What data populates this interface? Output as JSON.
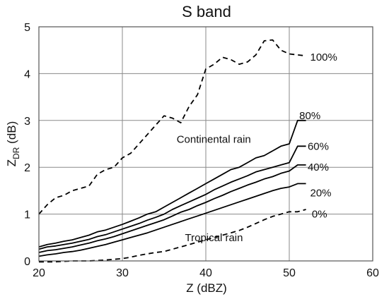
{
  "chart_data": {
    "type": "line",
    "title": "S band",
    "xlabel": "Z (dBZ)",
    "ylabel": {
      "main": "Z",
      "sub": "DR",
      "unit": " (dB)"
    },
    "xlim": [
      20,
      60
    ],
    "ylim": [
      0,
      5
    ],
    "xticks": [
      20,
      30,
      40,
      50,
      60
    ],
    "yticks": [
      0,
      1,
      2,
      3,
      4,
      5
    ],
    "grid": true,
    "annotations": [
      {
        "text": "Continental rain",
        "x": 36.5,
        "y": 2.6
      },
      {
        "text": "Tropical rain",
        "x": 37.5,
        "y": 0.5
      }
    ],
    "series": [
      {
        "name": "100%",
        "style": "dashed",
        "label_pos": [
          52.5,
          4.35
        ],
        "points": [
          [
            20,
            1.0
          ],
          [
            21,
            1.2
          ],
          [
            22,
            1.35
          ],
          [
            23,
            1.4
          ],
          [
            24,
            1.5
          ],
          [
            25,
            1.55
          ],
          [
            26,
            1.6
          ],
          [
            27,
            1.85
          ],
          [
            28,
            1.95
          ],
          [
            29,
            2.0
          ],
          [
            30,
            2.2
          ],
          [
            31,
            2.3
          ],
          [
            32,
            2.5
          ],
          [
            33,
            2.7
          ],
          [
            34,
            2.9
          ],
          [
            35,
            3.1
          ],
          [
            36,
            3.05
          ],
          [
            37,
            2.95
          ],
          [
            38,
            3.3
          ],
          [
            39,
            3.55
          ],
          [
            40,
            4.1
          ],
          [
            41,
            4.2
          ],
          [
            42,
            4.35
          ],
          [
            43,
            4.3
          ],
          [
            44,
            4.2
          ],
          [
            45,
            4.25
          ],
          [
            46,
            4.4
          ],
          [
            47,
            4.7
          ],
          [
            48,
            4.72
          ],
          [
            49,
            4.5
          ],
          [
            50,
            4.42
          ],
          [
            51,
            4.4
          ],
          [
            52,
            4.38
          ]
        ]
      },
      {
        "name": "80%",
        "style": "solid",
        "label_pos": [
          51.2,
          3.1
        ],
        "points": [
          [
            20,
            0.3
          ],
          [
            21,
            0.35
          ],
          [
            22,
            0.38
          ],
          [
            23,
            0.42
          ],
          [
            24,
            0.45
          ],
          [
            25,
            0.5
          ],
          [
            26,
            0.55
          ],
          [
            27,
            0.62
          ],
          [
            28,
            0.66
          ],
          [
            29,
            0.72
          ],
          [
            30,
            0.78
          ],
          [
            31,
            0.85
          ],
          [
            32,
            0.92
          ],
          [
            33,
            1.0
          ],
          [
            34,
            1.05
          ],
          [
            35,
            1.15
          ],
          [
            36,
            1.25
          ],
          [
            37,
            1.35
          ],
          [
            38,
            1.45
          ],
          [
            39,
            1.55
          ],
          [
            40,
            1.65
          ],
          [
            41,
            1.75
          ],
          [
            42,
            1.85
          ],
          [
            43,
            1.95
          ],
          [
            44,
            2.0
          ],
          [
            45,
            2.1
          ],
          [
            46,
            2.2
          ],
          [
            47,
            2.25
          ],
          [
            48,
            2.35
          ],
          [
            49,
            2.45
          ],
          [
            50,
            2.5
          ],
          [
            51,
            3.0
          ],
          [
            52,
            3.0
          ]
        ]
      },
      {
        "name": "60%",
        "style": "solid",
        "label_pos": [
          52.2,
          2.45
        ],
        "points": [
          [
            20,
            0.25
          ],
          [
            21,
            0.3
          ],
          [
            22,
            0.32
          ],
          [
            23,
            0.35
          ],
          [
            24,
            0.38
          ],
          [
            25,
            0.42
          ],
          [
            26,
            0.46
          ],
          [
            27,
            0.52
          ],
          [
            28,
            0.56
          ],
          [
            29,
            0.62
          ],
          [
            30,
            0.68
          ],
          [
            31,
            0.74
          ],
          [
            32,
            0.8
          ],
          [
            33,
            0.87
          ],
          [
            34,
            0.93
          ],
          [
            35,
            1.0
          ],
          [
            36,
            1.1
          ],
          [
            37,
            1.18
          ],
          [
            38,
            1.26
          ],
          [
            39,
            1.34
          ],
          [
            40,
            1.42
          ],
          [
            41,
            1.52
          ],
          [
            42,
            1.6
          ],
          [
            43,
            1.68
          ],
          [
            44,
            1.75
          ],
          [
            45,
            1.82
          ],
          [
            46,
            1.9
          ],
          [
            47,
            1.95
          ],
          [
            48,
            2.0
          ],
          [
            49,
            2.05
          ],
          [
            50,
            2.1
          ],
          [
            51,
            2.45
          ],
          [
            52,
            2.45
          ]
        ]
      },
      {
        "name": "40%",
        "style": "solid",
        "label_pos": [
          52.2,
          2.0
        ],
        "points": [
          [
            20,
            0.18
          ],
          [
            21,
            0.22
          ],
          [
            22,
            0.24
          ],
          [
            23,
            0.27
          ],
          [
            24,
            0.3
          ],
          [
            25,
            0.34
          ],
          [
            26,
            0.38
          ],
          [
            27,
            0.43
          ],
          [
            28,
            0.47
          ],
          [
            29,
            0.52
          ],
          [
            30,
            0.58
          ],
          [
            31,
            0.64
          ],
          [
            32,
            0.7
          ],
          [
            33,
            0.76
          ],
          [
            34,
            0.82
          ],
          [
            35,
            0.88
          ],
          [
            36,
            0.96
          ],
          [
            37,
            1.04
          ],
          [
            38,
            1.1
          ],
          [
            39,
            1.18
          ],
          [
            40,
            1.25
          ],
          [
            41,
            1.33
          ],
          [
            42,
            1.4
          ],
          [
            43,
            1.48
          ],
          [
            44,
            1.55
          ],
          [
            45,
            1.62
          ],
          [
            46,
            1.68
          ],
          [
            47,
            1.75
          ],
          [
            48,
            1.8
          ],
          [
            49,
            1.87
          ],
          [
            50,
            1.92
          ],
          [
            51,
            2.05
          ],
          [
            52,
            2.05
          ]
        ]
      },
      {
        "name": "20%",
        "style": "solid",
        "label_pos": [
          52.5,
          1.45
        ],
        "points": [
          [
            20,
            0.1
          ],
          [
            21,
            0.13
          ],
          [
            22,
            0.15
          ],
          [
            23,
            0.18
          ],
          [
            24,
            0.2
          ],
          [
            25,
            0.23
          ],
          [
            26,
            0.27
          ],
          [
            27,
            0.31
          ],
          [
            28,
            0.35
          ],
          [
            29,
            0.4
          ],
          [
            30,
            0.45
          ],
          [
            31,
            0.5
          ],
          [
            32,
            0.55
          ],
          [
            33,
            0.6
          ],
          [
            34,
            0.66
          ],
          [
            35,
            0.72
          ],
          [
            36,
            0.78
          ],
          [
            37,
            0.84
          ],
          [
            38,
            0.9
          ],
          [
            39,
            0.96
          ],
          [
            40,
            1.02
          ],
          [
            41,
            1.08
          ],
          [
            42,
            1.14
          ],
          [
            43,
            1.2
          ],
          [
            44,
            1.26
          ],
          [
            45,
            1.32
          ],
          [
            46,
            1.38
          ],
          [
            47,
            1.44
          ],
          [
            48,
            1.5
          ],
          [
            49,
            1.55
          ],
          [
            50,
            1.58
          ],
          [
            51,
            1.65
          ],
          [
            52,
            1.65
          ]
        ]
      },
      {
        "name": "0%",
        "style": "dashed",
        "label_pos": [
          52.7,
          1.0
        ],
        "points": [
          [
            20,
            -0.02
          ],
          [
            22,
            -0.02
          ],
          [
            24,
            0.0
          ],
          [
            26,
            0.0
          ],
          [
            28,
            0.02
          ],
          [
            30,
            0.05
          ],
          [
            31,
            0.08
          ],
          [
            32,
            0.12
          ],
          [
            33,
            0.15
          ],
          [
            34,
            0.18
          ],
          [
            35,
            0.2
          ],
          [
            36,
            0.25
          ],
          [
            37,
            0.3
          ],
          [
            38,
            0.35
          ],
          [
            39,
            0.4
          ],
          [
            40,
            0.45
          ],
          [
            41,
            0.5
          ],
          [
            42,
            0.55
          ],
          [
            43,
            0.6
          ],
          [
            44,
            0.65
          ],
          [
            45,
            0.72
          ],
          [
            46,
            0.8
          ],
          [
            47,
            0.88
          ],
          [
            48,
            0.95
          ],
          [
            49,
            1.0
          ],
          [
            50,
            1.05
          ],
          [
            51,
            1.05
          ],
          [
            52,
            1.1
          ]
        ]
      }
    ]
  }
}
